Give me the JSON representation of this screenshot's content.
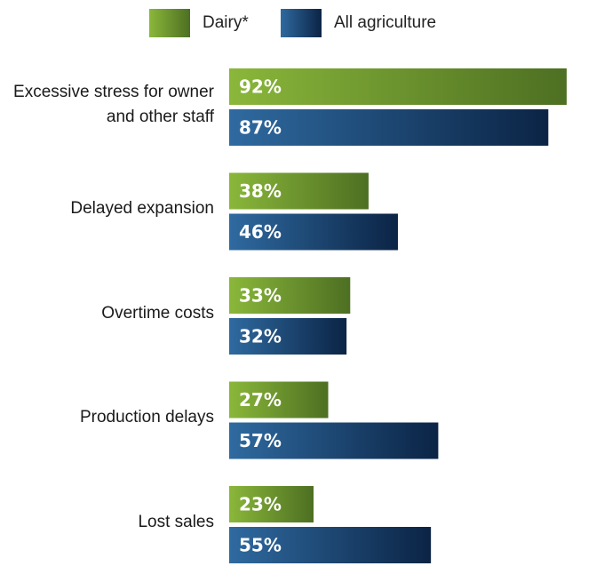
{
  "legend": {
    "series1": "Dairy*",
    "series2": "All agriculture"
  },
  "colors": {
    "dairy_light": "#8ab73a",
    "dairy_dark": "#4d6f22",
    "all_light": "#2f6aa0",
    "all_dark": "#0b2445"
  },
  "chart_data": {
    "type": "bar",
    "orientation": "horizontal",
    "categories": [
      "Excessive stress for owner and other staff",
      "Delayed expansion",
      "Overtime costs",
      "Production delays",
      "Lost sales"
    ],
    "category_lines": [
      [
        "Excessive stress for owner",
        "and other staff"
      ],
      [
        "Delayed expansion"
      ],
      [
        "Overtime costs"
      ],
      [
        "Production delays"
      ],
      [
        "Lost sales"
      ]
    ],
    "series": [
      {
        "name": "Dairy*",
        "values": [
          92,
          38,
          33,
          27,
          23
        ]
      },
      {
        "name": "All agriculture",
        "values": [
          87,
          46,
          32,
          57,
          55
        ]
      }
    ],
    "value_labels": [
      [
        "92%",
        "38%",
        "33%",
        "27%",
        "23%"
      ],
      [
        "87%",
        "46%",
        "32%",
        "57%",
        "55%"
      ]
    ],
    "xlim": [
      0,
      100
    ],
    "unit": "%",
    "grid": false,
    "legend_position": "top"
  }
}
